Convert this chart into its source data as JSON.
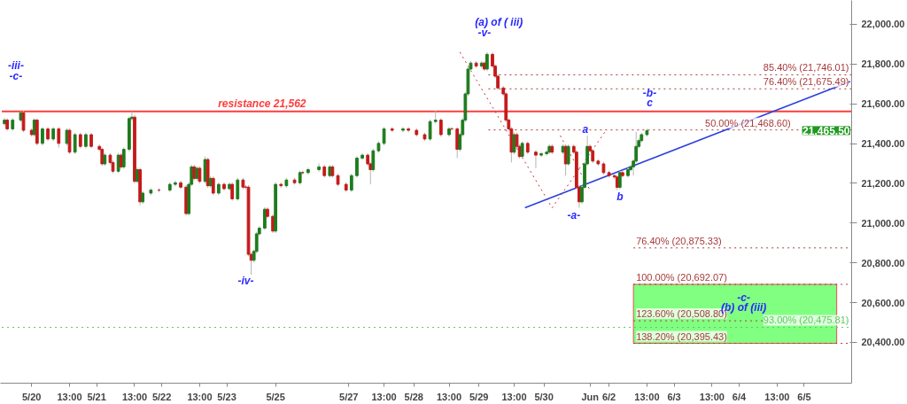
{
  "chart_data": {
    "type": "candlestick",
    "categories": [
      null,
      null,
      null,
      null,
      null,
      null,
      null,
      null,
      null,
      null,
      null,
      "5/20",
      null,
      null,
      null,
      null,
      null,
      null,
      null,
      null,
      null,
      null,
      null,
      null,
      null,
      "13:00",
      null,
      null,
      null,
      null,
      null,
      null,
      null,
      null,
      null,
      "5/21",
      null,
      null,
      null,
      null,
      null,
      null,
      null,
      null,
      null,
      null,
      null,
      null,
      null,
      "13:00",
      null,
      null,
      null,
      null,
      null,
      null,
      null,
      null,
      null,
      "5/22",
      null,
      null,
      null,
      null,
      null,
      null,
      null,
      null,
      null,
      null,
      null,
      null,
      null,
      "13:00",
      null,
      null,
      null,
      null,
      null,
      null,
      null,
      null,
      null,
      "5/23",
      null,
      null,
      null,
      null,
      null,
      null,
      null,
      null,
      null,
      null,
      null,
      null,
      null,
      null,
      null,
      null,
      null,
      "5/25",
      null,
      null,
      null,
      null,
      null,
      null,
      null,
      null,
      null,
      null,
      null,
      null,
      null,
      null,
      null,
      null,
      null,
      null,
      null,
      null,
      null,
      null,
      null,
      null,
      null,
      null,
      "5/27",
      null,
      null,
      null,
      null,
      null,
      null,
      null,
      null,
      null,
      null,
      null,
      null,
      "13:00",
      null,
      null,
      null,
      null,
      null,
      null,
      null,
      null,
      null,
      null,
      "5/28",
      null,
      null,
      null,
      null,
      null,
      null,
      null,
      null,
      null,
      null,
      null,
      null,
      "13:00",
      null,
      null,
      null,
      null,
      null,
      null,
      null,
      null,
      null,
      null,
      "5/29",
      null,
      null,
      null,
      null,
      null,
      null,
      null,
      null,
      null,
      null,
      null,
      null,
      "13:00",
      null,
      null,
      null,
      null,
      null,
      null,
      null,
      null,
      null,
      null,
      "5/30",
      null,
      null,
      null,
      null,
      null,
      null,
      null,
      null,
      null,
      null,
      null,
      null,
      null,
      null,
      null,
      null,
      "Jun",
      null,
      null,
      null,
      null,
      null,
      null,
      "6/2",
      null,
      null,
      null,
      null,
      null,
      null,
      null,
      null,
      null,
      null,
      null,
      null,
      null,
      "13:00",
      null,
      null,
      null,
      null,
      null,
      null,
      null,
      null,
      null,
      "6/3",
      null,
      null,
      null,
      null,
      null,
      null,
      null,
      null,
      null,
      null,
      null,
      null,
      null,
      "13:00",
      null,
      null,
      null,
      null,
      null,
      null,
      null,
      null,
      null,
      "6/4",
      null,
      null,
      null,
      null,
      null,
      null,
      null,
      null,
      null,
      null,
      null,
      null,
      null,
      "13:00",
      null,
      null,
      null,
      null,
      null,
      null,
      null,
      null,
      null,
      "6/5",
      null,
      null,
      null,
      null,
      null,
      null,
      null,
      null,
      null,
      null,
      null,
      null,
      null,
      null,
      null,
      null,
      null
    ],
    "ohlc": [
      null,
      [
        21500,
        21530,
        21490,
        21518
      ],
      [
        21518,
        21528,
        21464,
        21474
      ],
      null,
      [
        21474,
        21528,
        21464,
        21518
      ],
      null,
      null,
      [
        21518,
        21562,
        21508,
        21555
      ],
      [
        21555,
        21565,
        21457,
        21467
      ],
      null,
      null,
      [
        21467,
        21477,
        21435,
        21445
      ],
      [
        21445,
        21528,
        21435,
        21518
      ],
      [
        21518,
        21528,
        21391,
        21401
      ],
      null,
      [
        21401,
        21484,
        21391,
        21474
      ],
      null,
      [
        21474,
        21484,
        21413,
        21423
      ],
      null,
      [
        21423,
        21484,
        21413,
        21474
      ],
      null,
      [
        21474,
        21484,
        21380,
        21401
      ],
      null,
      null,
      [
        21401,
        21477,
        21391,
        21467
      ],
      [
        21467,
        21477,
        21347,
        21357
      ],
      null,
      [
        21357,
        21455,
        21347,
        21445
      ],
      null,
      [
        21445,
        21455,
        21376,
        21386
      ],
      null,
      [
        21386,
        21455,
        21376,
        21445
      ],
      null,
      [
        21445,
        21455,
        21376,
        21386
      ],
      null,
      null,
      [
        21386,
        21396,
        21361,
        21371
      ],
      [
        21371,
        21381,
        21288,
        21298
      ],
      [
        21298,
        21352,
        21288,
        21342
      ],
      null,
      [
        21342,
        21352,
        21295,
        21305
      ],
      [
        21305,
        21315,
        21251,
        21261
      ],
      null,
      [
        21261,
        21352,
        21251,
        21342
      ],
      [
        21342,
        21352,
        21273,
        21283
      ],
      [
        21283,
        21381,
        21273,
        21371
      ],
      null,
      [
        21371,
        21536,
        21361,
        21526
      ],
      [
        21526,
        21562,
        21516,
        21533
      ],
      [
        21533,
        21543,
        21200,
        21210
      ],
      [
        21210,
        21279,
        21200,
        21269
      ],
      [
        21269,
        21279,
        21090,
        21107
      ],
      [
        21107,
        21161,
        21097,
        21151
      ],
      null,
      null,
      [
        21151,
        21176,
        21141,
        21166
      ],
      null,
      null,
      [
        21166,
        21176,
        21156,
        21166
      ],
      null,
      null,
      null,
      [
        21166,
        21205,
        21156,
        21195
      ],
      null,
      [
        21195,
        21213,
        21185,
        21203
      ],
      null,
      [
        21203,
        21213,
        21171,
        21181
      ],
      null,
      [
        21181,
        21191,
        21038,
        21048
      ],
      [
        21048,
        21205,
        21038,
        21195
      ],
      [
        21195,
        21293,
        21185,
        21283
      ],
      [
        21283,
        21293,
        21215,
        21225
      ],
      [
        21225,
        21286,
        21215,
        21276
      ],
      [
        21276,
        21286,
        21200,
        21210
      ],
      null,
      [
        21210,
        21335,
        21200,
        21320
      ],
      [
        21320,
        21330,
        21178,
        21188
      ],
      [
        21188,
        21235,
        21178,
        21225
      ],
      [
        21225,
        21235,
        21141,
        21151
      ],
      null,
      [
        21151,
        21205,
        21141,
        21195
      ],
      null,
      [
        21195,
        21205,
        21163,
        21173
      ],
      null,
      [
        21173,
        21205,
        21163,
        21195
      ],
      [
        21195,
        21205,
        21112,
        21122
      ],
      null,
      [
        21122,
        21227,
        21112,
        21217
      ],
      null,
      [
        21217,
        21227,
        21171,
        21181
      ],
      [
        21181,
        21191,
        21171,
        21181
      ],
      [
        21181,
        21191,
        20833,
        20843
      ],
      [
        20843,
        20853,
        20740,
        20813
      ],
      [
        20813,
        20868,
        20803,
        20858
      ],
      [
        20858,
        20956,
        20848,
        20946
      ],
      [
        20946,
        20985,
        20936,
        20975
      ],
      null,
      [
        20975,
        21080,
        20965,
        21070
      ],
      [
        21070,
        21080,
        21024,
        21034
      ],
      null,
      [
        21034,
        21044,
        20950,
        20960
      ],
      [
        20960,
        21205,
        20950,
        21195
      ],
      null,
      [
        21195,
        21205,
        21178,
        21188
      ],
      null,
      [
        21188,
        21227,
        21178,
        21217
      ],
      null,
      null,
      [
        21217,
        21227,
        21193,
        21203
      ],
      null,
      [
        21203,
        21264,
        21193,
        21254
      ],
      [
        21254,
        21264,
        21244,
        21254
      ],
      null,
      [
        21254,
        21279,
        21244,
        21269
      ],
      null,
      null,
      null,
      [
        21269,
        21300,
        21259,
        21283
      ],
      null,
      [
        21283,
        21293,
        21229,
        21239
      ],
      null,
      [
        21239,
        21293,
        21229,
        21283
      ],
      [
        21283,
        21293,
        21229,
        21239
      ],
      null,
      [
        21239,
        21249,
        21185,
        21195
      ],
      null,
      null,
      [
        21195,
        21205,
        21156,
        21166
      ],
      null,
      [
        21166,
        21249,
        21156,
        21239
      ],
      null,
      [
        21239,
        21337,
        21229,
        21327
      ],
      null,
      [
        21327,
        21352,
        21317,
        21342
      ],
      null,
      [
        21342,
        21352,
        21288,
        21298
      ],
      [
        21298,
        21308,
        21195,
        21269
      ],
      [
        21269,
        21374,
        21259,
        21364
      ],
      null,
      [
        21364,
        21411,
        21354,
        21401
      ],
      null,
      [
        21401,
        21484,
        21391,
        21474
      ],
      null,
      null,
      [
        21474,
        21484,
        21457,
        21467
      ],
      null,
      null,
      null,
      [
        21467,
        21484,
        21457,
        21474
      ],
      null,
      [
        21474,
        21484,
        21457,
        21467
      ],
      null,
      null,
      [
        21467,
        21477,
        21435,
        21445
      ],
      null,
      null,
      [
        21445,
        21455,
        21413,
        21423
      ],
      null,
      [
        21423,
        21521,
        21413,
        21511
      ],
      null,
      [
        21511,
        21565,
        21501,
        21518
      ],
      null,
      [
        21518,
        21528,
        21435,
        21445
      ],
      null,
      null,
      [
        21445,
        21484,
        21435,
        21474
      ],
      [
        21474,
        21484,
        21464,
        21474
      ],
      null,
      [
        21474,
        21484,
        21327,
        21371
      ],
      [
        21371,
        21455,
        21361,
        21445
      ],
      [
        21445,
        21528,
        21435,
        21518
      ],
      [
        21518,
        21660,
        21508,
        21650
      ],
      [
        21650,
        21785,
        21640,
        21775
      ],
      [
        21775,
        21815,
        21765,
        21805
      ],
      null,
      [
        21805,
        21815,
        21780,
        21790
      ],
      null,
      [
        21790,
        21815,
        21780,
        21805
      ],
      [
        21805,
        21815,
        21765,
        21775
      ],
      [
        21775,
        21860,
        21765,
        21849
      ],
      null,
      [
        21849,
        21859,
        21780,
        21790
      ],
      [
        21790,
        21800,
        21729,
        21739
      ],
      [
        21739,
        21749,
        21670,
        21680
      ],
      null,
      [
        21680,
        21690,
        21640,
        21650
      ],
      [
        21650,
        21660,
        21508,
        21518
      ],
      [
        21518,
        21528,
        21464,
        21474
      ],
      [
        21474,
        21484,
        21305,
        21357
      ],
      [
        21357,
        21455,
        21347,
        21445
      ],
      [
        21445,
        21455,
        21376,
        21386
      ],
      [
        21386,
        21396,
        21325,
        21335
      ],
      [
        21335,
        21411,
        21325,
        21401
      ],
      null,
      [
        21401,
        21411,
        21347,
        21357
      ],
      null,
      null,
      [
        21357,
        21367,
        21276,
        21342
      ],
      null,
      [
        21342,
        21359,
        21332,
        21349
      ],
      null,
      [
        21349,
        21367,
        21339,
        21357
      ],
      [
        21357,
        21396,
        21347,
        21386
      ],
      [
        21386,
        21396,
        21347,
        21357
      ],
      null,
      null,
      null,
      [
        21357,
        21396,
        21347,
        21386
      ],
      [
        21386,
        21396,
        21239,
        21298
      ],
      [
        21298,
        21396,
        21288,
        21386
      ],
      null,
      [
        21386,
        21396,
        21347,
        21357
      ],
      [
        21357,
        21367,
        21170,
        21180
      ],
      [
        21180,
        21190,
        21077,
        21107
      ],
      [
        21107,
        21190,
        21097,
        21180
      ],
      [
        21180,
        21308,
        21170,
        21298
      ],
      [
        21298,
        21440,
        21288,
        21386
      ],
      [
        21386,
        21396,
        21354,
        21364
      ],
      [
        21364,
        21374,
        21302,
        21312
      ],
      null,
      [
        21312,
        21322,
        21288,
        21298
      ],
      null,
      [
        21298,
        21308,
        21244,
        21254
      ],
      null,
      [
        21254,
        21264,
        21229,
        21239
      ],
      null,
      [
        21239,
        21249,
        21222,
        21232
      ],
      [
        21232,
        21242,
        21166,
        21180
      ],
      [
        21180,
        21264,
        21170,
        21254
      ],
      [
        21254,
        21264,
        21229,
        21239
      ],
      null,
      [
        21239,
        21279,
        21229,
        21269
      ],
      [
        21269,
        21293,
        21259,
        21283
      ],
      [
        21283,
        21322,
        21240,
        21312
      ],
      [
        21312,
        21459,
        21302,
        21386
      ],
      [
        21386,
        21425,
        21376,
        21415
      ],
      [
        21415,
        21455,
        21405,
        21445
      ],
      null,
      [
        21445,
        21475,
        21435,
        21465.5
      ],
      null,
      null,
      null,
      null,
      null,
      null,
      null,
      null,
      null,
      null,
      null,
      null,
      null,
      null,
      null,
      null,
      null,
      null,
      null,
      null,
      null,
      null,
      null,
      null,
      null,
      null,
      null,
      null,
      null,
      null,
      null,
      null,
      null,
      null,
      null,
      null,
      null,
      null,
      null,
      null,
      null,
      null,
      null,
      null,
      null,
      null,
      null,
      null,
      null,
      null,
      null,
      null,
      null,
      null,
      null,
      null,
      null,
      null,
      null,
      null,
      null,
      null,
      null,
      null,
      null,
      null,
      null,
      null,
      null,
      null,
      null,
      null,
      null,
      null,
      null
    ],
    "series": [
      {
        "type": "line",
        "color": "#2a3fe0",
        "line_style": "solid",
        "values": [
          null,
          null,
          null,
          null,
          null,
          null,
          null,
          null,
          null,
          null,
          null,
          null,
          null,
          null,
          null,
          null,
          null,
          null,
          null,
          null,
          null,
          null,
          null,
          null,
          null,
          null,
          null,
          null,
          null,
          null,
          null,
          null,
          null,
          null,
          null,
          null,
          null,
          null,
          null,
          null,
          null,
          null,
          null,
          null,
          null,
          null,
          null,
          null,
          null,
          null,
          null,
          null,
          null,
          null,
          null,
          null,
          null,
          null,
          null,
          null,
          null,
          null,
          null,
          null,
          null,
          null,
          null,
          null,
          null,
          null,
          null,
          null,
          null,
          null,
          null,
          null,
          null,
          null,
          null,
          null,
          null,
          null,
          null,
          null,
          null,
          null,
          null,
          null,
          null,
          null,
          null,
          null,
          null,
          null,
          null,
          null,
          null,
          null,
          null,
          null,
          null,
          null,
          null,
          null,
          null,
          null,
          null,
          null,
          null,
          null,
          null,
          null,
          null,
          null,
          null,
          null,
          null,
          null,
          null,
          null,
          null,
          null,
          null,
          null,
          null,
          null,
          null,
          null,
          null,
          null,
          null,
          null,
          null,
          null,
          null,
          null,
          null,
          null,
          null,
          null,
          null,
          null,
          null,
          null,
          null,
          null,
          null,
          null,
          null,
          null,
          null,
          null,
          null,
          null,
          null,
          null,
          null,
          null,
          null,
          null,
          null,
          null,
          null,
          null,
          null,
          null,
          null,
          null,
          null,
          null,
          null,
          null,
          null,
          null,
          null,
          null,
          null,
          null,
          null,
          null,
          null,
          null,
          null,
          null,
          null,
          null,
          null,
          null,
          null,
          null,
          null,
          null,
          null,
          21077,
          null,
          null,
          null,
          null,
          null,
          null,
          null,
          null,
          null,
          null,
          null,
          null,
          null,
          null,
          null,
          null,
          null,
          null,
          null,
          null,
          null,
          null,
          null,
          null,
          null,
          null,
          null,
          null,
          null,
          null,
          null,
          null,
          null,
          null,
          null,
          null,
          null,
          null,
          null,
          null,
          null,
          null,
          null,
          null,
          null,
          null,
          null,
          null,
          null,
          null,
          null,
          null,
          null,
          null,
          null,
          null,
          null,
          null,
          null,
          null,
          null,
          null,
          null,
          null,
          null,
          null,
          null,
          null,
          null,
          null,
          null,
          null,
          null,
          null,
          null,
          null,
          null,
          null,
          null,
          null,
          null,
          null,
          null,
          null,
          null,
          null,
          null,
          null,
          null,
          null,
          null,
          null,
          null,
          null,
          null,
          null,
          null,
          null,
          null,
          null,
          null,
          null,
          null,
          null,
          null,
          null,
          null,
          null,
          null,
          null,
          null,
          null,
          null,
          null,
          null,
          null,
          null,
          null,
          null,
          21712
        ]
      },
      {
        "type": "line",
        "color": "#b83a3a",
        "line_style": "dotted",
        "values": [
          null,
          null,
          null,
          null,
          null,
          null,
          null,
          null,
          null,
          null,
          null,
          null,
          null,
          null,
          null,
          null,
          null,
          null,
          null,
          null,
          null,
          null,
          null,
          null,
          null,
          null,
          null,
          null,
          null,
          null,
          null,
          null,
          null,
          null,
          null,
          null,
          null,
          null,
          null,
          null,
          null,
          null,
          null,
          null,
          null,
          null,
          null,
          null,
          null,
          null,
          null,
          null,
          null,
          null,
          null,
          null,
          null,
          null,
          null,
          null,
          null,
          null,
          null,
          null,
          null,
          null,
          null,
          null,
          null,
          null,
          null,
          null,
          null,
          null,
          null,
          null,
          null,
          null,
          null,
          null,
          null,
          null,
          null,
          null,
          null,
          null,
          null,
          null,
          null,
          null,
          null,
          null,
          null,
          null,
          null,
          null,
          null,
          null,
          null,
          null,
          null,
          null,
          null,
          null,
          null,
          null,
          null,
          null,
          null,
          null,
          null,
          null,
          null,
          null,
          null,
          null,
          null,
          null,
          null,
          null,
          null,
          null,
          null,
          null,
          null,
          null,
          null,
          null,
          null,
          null,
          null,
          null,
          null,
          null,
          null,
          null,
          null,
          null,
          null,
          null,
          null,
          null,
          null,
          null,
          null,
          null,
          null,
          null,
          null,
          null,
          null,
          null,
          null,
          null,
          null,
          null,
          null,
          null,
          null,
          null,
          null,
          null,
          null,
          null,
          null,
          null,
          null,
          null,
          null,
          21860,
          null,
          null,
          null,
          null,
          null,
          null,
          null,
          null,
          null,
          null,
          null,
          null,
          null,
          null,
          null,
          null,
          null,
          null,
          null,
          null,
          null,
          null,
          null,
          null,
          null,
          null,
          null,
          null,
          null,
          null,
          null,
          null,
          null,
          21077,
          null,
          null,
          null,
          null,
          null,
          null,
          null,
          null,
          null,
          null,
          null,
          null,
          null,
          null,
          null,
          null,
          null,
          null,
          null,
          21468.6,
          null,
          null,
          null,
          null,
          null,
          null,
          null,
          null,
          null,
          null,
          null,
          null,
          null,
          null,
          null,
          null,
          null,
          null,
          null,
          null,
          null,
          null,
          null,
          null,
          null,
          null,
          null,
          null,
          null,
          null,
          null,
          null,
          null,
          null,
          null,
          null,
          null,
          null,
          null,
          null,
          null,
          null,
          null,
          null,
          null,
          null,
          null,
          null,
          null,
          null,
          null,
          null,
          null,
          null,
          null,
          null,
          null,
          null,
          null,
          null,
          null,
          null,
          null,
          null,
          null,
          null,
          null,
          null,
          null,
          null,
          null,
          null,
          null,
          null,
          null,
          null,
          null,
          null,
          null,
          null,
          null,
          null,
          null,
          null,
          null,
          null,
          null,
          null,
          null,
          null
        ]
      },
      {
        "type": "line",
        "color": "#b83a3a",
        "line_style": "dotted",
        "values": [
          null,
          null,
          null,
          null,
          null,
          null,
          null,
          null,
          null,
          null,
          null,
          null,
          null,
          null,
          null,
          null,
          null,
          null,
          null,
          null,
          null,
          null,
          null,
          null,
          null,
          null,
          null,
          null,
          null,
          null,
          null,
          null,
          null,
          null,
          null,
          null,
          null,
          null,
          null,
          null,
          null,
          null,
          null,
          null,
          null,
          null,
          null,
          null,
          null,
          null,
          null,
          null,
          null,
          null,
          null,
          null,
          null,
          null,
          null,
          null,
          null,
          null,
          null,
          null,
          null,
          null,
          null,
          null,
          null,
          null,
          null,
          null,
          null,
          null,
          null,
          null,
          null,
          null,
          null,
          null,
          null,
          null,
          null,
          null,
          null,
          null,
          null,
          null,
          null,
          null,
          null,
          null,
          null,
          null,
          null,
          null,
          null,
          null,
          null,
          null,
          null,
          null,
          null,
          null,
          null,
          null,
          null,
          null,
          null,
          null,
          null,
          null,
          null,
          null,
          null,
          null,
          null,
          null,
          null,
          null,
          null,
          null,
          null,
          null,
          null,
          null,
          null,
          null,
          null,
          null,
          null,
          null,
          null,
          null,
          null,
          null,
          null,
          null,
          null,
          null,
          null,
          null,
          null,
          null,
          null,
          null,
          null,
          null,
          null,
          null,
          null,
          null,
          null,
          null,
          null,
          null,
          null,
          null,
          null,
          null,
          null,
          null,
          null,
          null,
          null,
          null,
          null,
          null,
          null,
          null,
          null,
          null,
          null,
          null,
          null,
          null,
          null,
          null,
          null,
          null,
          null,
          null,
          null,
          null,
          null,
          null,
          null,
          null,
          null,
          null,
          null,
          null,
          null,
          null,
          null,
          null,
          null,
          null,
          null,
          null,
          null,
          null,
          null,
          null,
          null,
          null,
          21440,
          null,
          null,
          null,
          null,
          null,
          null,
          null,
          null,
          null,
          null,
          21166,
          null,
          null,
          null,
          null,
          null,
          null,
          null,
          null,
          null,
          null,
          null,
          null,
          null,
          null,
          null,
          null,
          null,
          null,
          null,
          null,
          null,
          null,
          null,
          null,
          null,
          null,
          null,
          null,
          null,
          null,
          null,
          null,
          null,
          null,
          null,
          null,
          null,
          null,
          null,
          null,
          null,
          null,
          null,
          null,
          null,
          null,
          null,
          null,
          null,
          null,
          null,
          null,
          null,
          null,
          null,
          null,
          null,
          null,
          null,
          null,
          null,
          null,
          null,
          null,
          null,
          null,
          null,
          null,
          null,
          null,
          null,
          null,
          null,
          null,
          null,
          null,
          null,
          null,
          null,
          null,
          null,
          null,
          null,
          null,
          null,
          null,
          null,
          null,
          null,
          null,
          null,
          null,
          null,
          null,
          null,
          null
        ]
      }
    ],
    "ref_lines": [
      {
        "axis": "y",
        "value": 21562,
        "label": "resistance 21,562",
        "color": "#ff3c3c",
        "line_style": "solid"
      },
      {
        "axis": "y",
        "value": 21746.01,
        "label": "85.40% (21,746.01)",
        "color": "#a83a3a",
        "line_style": "dotted"
      },
      {
        "axis": "y",
        "value": 21675.49,
        "label": "76.40% (21,675.49)",
        "color": "#a83a3a",
        "line_style": "dotted"
      },
      {
        "axis": "y",
        "value": 21468.6,
        "label": "50.00% (21,468.60)",
        "color": "#a83a3a",
        "line_style": "dotted"
      },
      {
        "axis": "y",
        "value": 20875.33,
        "label": "76.40% (20,875.33)",
        "color": "#a83a3a",
        "line_style": "dotted"
      },
      {
        "axis": "y",
        "value": 20692.07,
        "label": "100.00% (20,692.07)",
        "color": "#a83a3a",
        "line_style": "dotted"
      },
      {
        "axis": "y",
        "value": 20508.8,
        "label": "123.60% (20,508.80)",
        "color": "#a83a3a",
        "line_style": "dotted"
      },
      {
        "axis": "y",
        "value": 20395.43,
        "label": "138.20% (20,395.43)",
        "color": "#a83a3a",
        "line_style": "dotted"
      },
      {
        "axis": "y",
        "value": 20475.81,
        "label": "93.00% (20,475.81)",
        "color": "#5ccc5c",
        "line_style": "dotted"
      }
    ],
    "bands": [
      {
        "axis": "y",
        "from": 20395.43,
        "to": 20692.07,
        "color": "#80ff80"
      }
    ],
    "annotations": [
      "-iii-",
      "-c-",
      "(a) of ( iii)",
      "-v-",
      "-iv-",
      "a",
      "-a-",
      "b",
      "-b-",
      "c",
      "-c-",
      "(b) of (iii)",
      "21,465.50"
    ],
    "ylim": [
      20195,
      22120
    ],
    "yticks": [
      {
        "value": 20400,
        "label": "20,400.00"
      },
      {
        "value": 20600,
        "label": "20,600.00"
      },
      {
        "value": 20800,
        "label": "20,800.00"
      },
      {
        "value": 21000,
        "label": "21,000.00"
      },
      {
        "value": 21200,
        "label": "21,200.00"
      },
      {
        "value": 21400,
        "label": "21,400.00"
      },
      {
        "value": 21600,
        "label": "21,600.00"
      },
      {
        "value": 21800,
        "label": "21,800.00"
      },
      {
        "value": 22000,
        "label": "22,000.00"
      }
    ],
    "grid": false
  }
}
